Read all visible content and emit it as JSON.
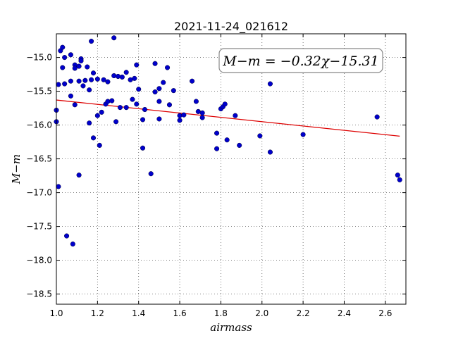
{
  "chart_data": {
    "type": "scatter",
    "title": "2021-11-24_021612",
    "xlabel": "airmass",
    "ylabel": "M−m",
    "xlim": [
      1.0,
      2.7
    ],
    "ylim": [
      -18.65,
      -14.65
    ],
    "y_inverted": true,
    "grid": true,
    "x_ticks": [
      1.0,
      1.2,
      1.4,
      1.6,
      1.8,
      2.0,
      2.2,
      2.4,
      2.6
    ],
    "x_tick_labels": [
      "1.0",
      "1.2",
      "1.4",
      "1.6",
      "1.8",
      "2.0",
      "2.2",
      "2.4",
      "2.6"
    ],
    "y_ticks": [
      -15.0,
      -15.5,
      -16.0,
      -16.5,
      -17.0,
      -17.5,
      -18.0,
      -18.5
    ],
    "y_tick_labels": [
      "−15.0",
      "−15.5",
      "−16.0",
      "−16.5",
      "−17.0",
      "−17.5",
      "−18.0",
      "−18.5"
    ],
    "annotation": "M−m = −0.32χ−15.31",
    "fit_line": {
      "slope": -0.32,
      "intercept": -15.31,
      "x_range": [
        1.0,
        2.67
      ],
      "color": "#dd0000"
    },
    "marker_color": "#0000cc",
    "points": [
      {
        "x": 1.0,
        "y": -15.78
      },
      {
        "x": 1.0,
        "y": -15.95
      },
      {
        "x": 1.01,
        "y": -16.91
      },
      {
        "x": 1.01,
        "y": -15.4
      },
      {
        "x": 1.02,
        "y": -14.9
      },
      {
        "x": 1.03,
        "y": -14.85
      },
      {
        "x": 1.03,
        "y": -15.15
      },
      {
        "x": 1.04,
        "y": -15.39
      },
      {
        "x": 1.04,
        "y": -15.0
      },
      {
        "x": 1.05,
        "y": -17.64
      },
      {
        "x": 1.07,
        "y": -14.96
      },
      {
        "x": 1.07,
        "y": -15.35
      },
      {
        "x": 1.07,
        "y": -15.57
      },
      {
        "x": 1.08,
        "y": -17.76
      },
      {
        "x": 1.09,
        "y": -15.7
      },
      {
        "x": 1.09,
        "y": -15.11
      },
      {
        "x": 1.09,
        "y": -15.16
      },
      {
        "x": 1.11,
        "y": -15.35
      },
      {
        "x": 1.11,
        "y": -15.13
      },
      {
        "x": 1.11,
        "y": -16.74
      },
      {
        "x": 1.12,
        "y": -15.02
      },
      {
        "x": 1.12,
        "y": -15.05
      },
      {
        "x": 1.13,
        "y": -15.42
      },
      {
        "x": 1.14,
        "y": -15.34
      },
      {
        "x": 1.15,
        "y": -15.14
      },
      {
        "x": 1.16,
        "y": -15.97
      },
      {
        "x": 1.16,
        "y": -15.48
      },
      {
        "x": 1.17,
        "y": -14.76
      },
      {
        "x": 1.17,
        "y": -15.33
      },
      {
        "x": 1.18,
        "y": -15.23
      },
      {
        "x": 1.18,
        "y": -16.19
      },
      {
        "x": 1.2,
        "y": -15.32
      },
      {
        "x": 1.2,
        "y": -15.86
      },
      {
        "x": 1.21,
        "y": -16.3
      },
      {
        "x": 1.22,
        "y": -15.81
      },
      {
        "x": 1.23,
        "y": -15.33
      },
      {
        "x": 1.24,
        "y": -15.69
      },
      {
        "x": 1.25,
        "y": -15.36
      },
      {
        "x": 1.25,
        "y": -15.65
      },
      {
        "x": 1.27,
        "y": -15.64
      },
      {
        "x": 1.28,
        "y": -15.27
      },
      {
        "x": 1.28,
        "y": -14.71
      },
      {
        "x": 1.29,
        "y": -15.95
      },
      {
        "x": 1.3,
        "y": -15.28
      },
      {
        "x": 1.31,
        "y": -15.74
      },
      {
        "x": 1.32,
        "y": -15.29
      },
      {
        "x": 1.34,
        "y": -15.22
      },
      {
        "x": 1.34,
        "y": -15.74
      },
      {
        "x": 1.36,
        "y": -15.33
      },
      {
        "x": 1.37,
        "y": -15.62
      },
      {
        "x": 1.38,
        "y": -15.31
      },
      {
        "x": 1.39,
        "y": -15.69
      },
      {
        "x": 1.39,
        "y": -15.11
      },
      {
        "x": 1.4,
        "y": -15.47
      },
      {
        "x": 1.42,
        "y": -15.92
      },
      {
        "x": 1.42,
        "y": -16.34
      },
      {
        "x": 1.43,
        "y": -15.77
      },
      {
        "x": 1.46,
        "y": -16.72
      },
      {
        "x": 1.48,
        "y": -15.09
      },
      {
        "x": 1.48,
        "y": -15.51
      },
      {
        "x": 1.5,
        "y": -15.91
      },
      {
        "x": 1.5,
        "y": -15.65
      },
      {
        "x": 1.5,
        "y": -15.46
      },
      {
        "x": 1.52,
        "y": -15.37
      },
      {
        "x": 1.54,
        "y": -15.15
      },
      {
        "x": 1.55,
        "y": -15.7
      },
      {
        "x": 1.57,
        "y": -15.49
      },
      {
        "x": 1.6,
        "y": -15.86
      },
      {
        "x": 1.6,
        "y": -15.93
      },
      {
        "x": 1.62,
        "y": -15.85
      },
      {
        "x": 1.66,
        "y": -15.35
      },
      {
        "x": 1.68,
        "y": -15.65
      },
      {
        "x": 1.69,
        "y": -15.8
      },
      {
        "x": 1.71,
        "y": -15.89
      },
      {
        "x": 1.71,
        "y": -15.82
      },
      {
        "x": 1.78,
        "y": -16.12
      },
      {
        "x": 1.78,
        "y": -16.35
      },
      {
        "x": 1.8,
        "y": -15.76
      },
      {
        "x": 1.81,
        "y": -15.73
      },
      {
        "x": 1.82,
        "y": -15.69
      },
      {
        "x": 1.83,
        "y": -16.22
      },
      {
        "x": 1.87,
        "y": -15.86
      },
      {
        "x": 1.89,
        "y": -16.3
      },
      {
        "x": 1.99,
        "y": -16.16
      },
      {
        "x": 2.04,
        "y": -15.39
      },
      {
        "x": 2.04,
        "y": -16.4
      },
      {
        "x": 2.2,
        "y": -16.14
      },
      {
        "x": 2.56,
        "y": -15.88
      },
      {
        "x": 2.66,
        "y": -16.74
      },
      {
        "x": 2.67,
        "y": -16.81
      }
    ]
  }
}
